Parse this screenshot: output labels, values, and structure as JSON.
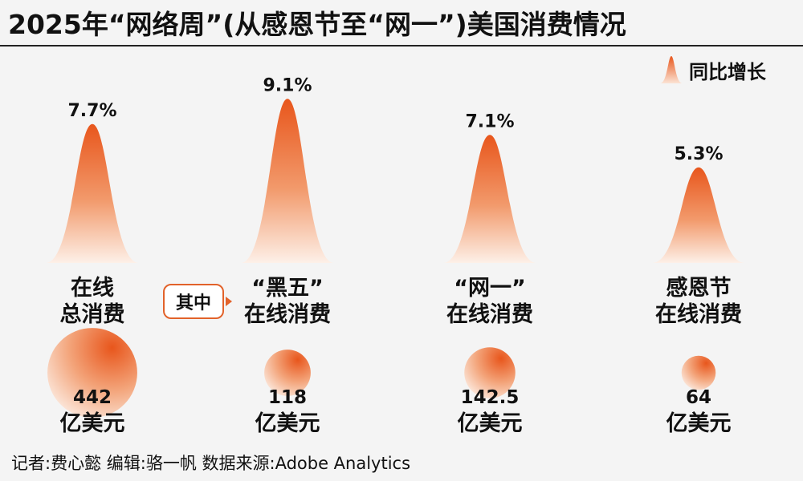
{
  "title": "2025年“网络周”(从感恩节至“网一”)美国消费情况",
  "legend": {
    "label": "同比增长"
  },
  "note": "其中",
  "footer": "记者:费心懿  编辑:骆一帆  数据来源:Adobe Analytics",
  "colors": {
    "accent": "#e8561c",
    "accent_light": "#fbe3d4",
    "text": "#111111",
    "background": "#f4f4f4"
  },
  "chart_data": {
    "type": "bubble-peak",
    "peak_metric": "同比增长",
    "bubble_metric": "消费额",
    "groups": [
      {
        "label_lines": [
          "在线",
          "总消费"
        ],
        "growth": 7.7,
        "growth_label": "7.7%",
        "spend": 442,
        "spend_label": "442",
        "unit": "亿美元"
      },
      {
        "label_lines": [
          "“黑五”",
          "在线消费"
        ],
        "growth": 9.1,
        "growth_label": "9.1%",
        "spend": 118,
        "spend_label": "118",
        "unit": "亿美元"
      },
      {
        "label_lines": [
          "“网一”",
          "在线消费"
        ],
        "growth": 7.1,
        "growth_label": "7.1%",
        "spend": 142.5,
        "spend_label": "142.5",
        "unit": "亿美元"
      },
      {
        "label_lines": [
          "感恩节",
          "在线消费"
        ],
        "growth": 5.3,
        "growth_label": "5.3%",
        "spend": 64,
        "spend_label": "64",
        "unit": "亿美元"
      }
    ]
  }
}
